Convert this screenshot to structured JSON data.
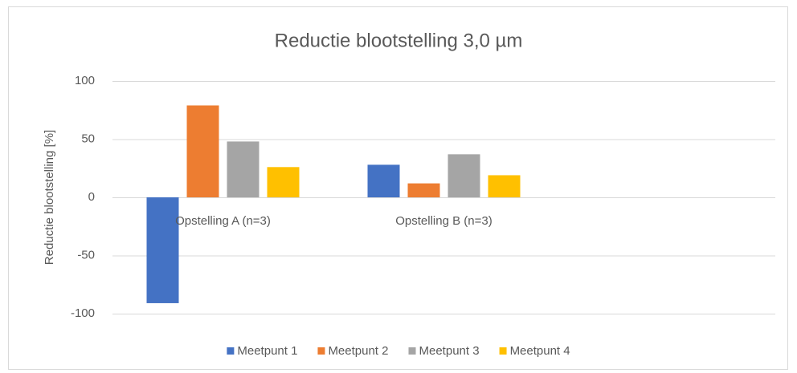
{
  "chart_data": {
    "type": "bar",
    "title": "Reductie blootstelling 3,0 µm",
    "y_label": "Reductie blootstelling [%]",
    "categories": [
      "Opstelling A (n=3)",
      "Opstelling B (n=3)",
      null
    ],
    "series": [
      {
        "name": "Meetpunt 1",
        "color": "#4472c4",
        "values": [
          -91,
          28,
          null
        ]
      },
      {
        "name": "Meetpunt 2",
        "color": "#ed7d31",
        "values": [
          79,
          12,
          null
        ]
      },
      {
        "name": "Meetpunt 3",
        "color": "#a5a5a5",
        "values": [
          48,
          37,
          null
        ]
      },
      {
        "name": "Meetpunt 4",
        "color": "#ffc000",
        "values": [
          26,
          19,
          null
        ]
      }
    ],
    "ylim": [
      -100,
      100
    ],
    "yticks": [
      -100,
      -50,
      0,
      50,
      100
    ],
    "grid": true,
    "legend": "bottom"
  }
}
